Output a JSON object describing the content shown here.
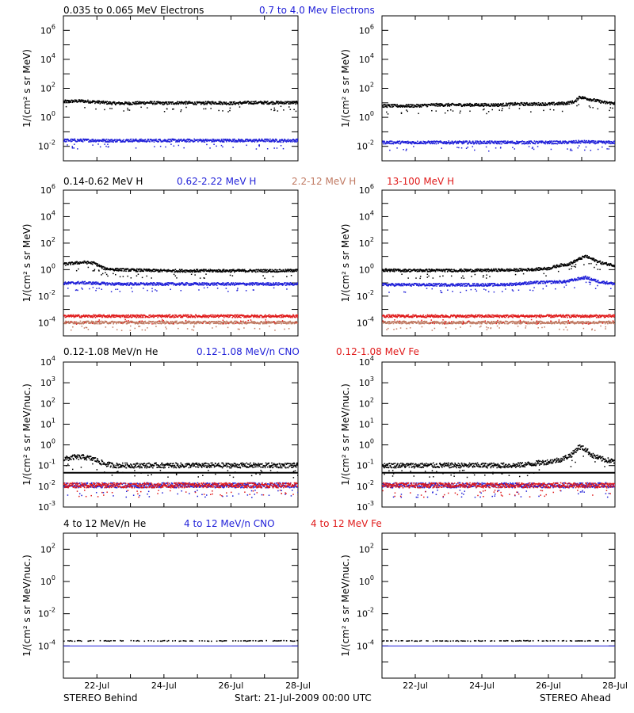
{
  "colors": {
    "black": "#000000",
    "blue": "#1f1fd8",
    "tan": "#c07a63",
    "red": "#e01a1a"
  },
  "rows": [
    {
      "id": "electrons",
      "header": [
        {
          "text": "0.035 to 0.065 MeV Electrons",
          "color": "black"
        },
        {
          "text": "0.7 to 4.0 Mev Electrons",
          "color": "blue"
        }
      ],
      "ylabel": "1/(cm² s sr MeV)",
      "yticks": [
        {
          "base": "10",
          "exp": "6"
        },
        {
          "base": "10",
          "exp": "4"
        },
        {
          "base": "10",
          "exp": "2"
        },
        {
          "base": "10",
          "exp": "0"
        },
        {
          "base": "10",
          "exp": "-2"
        }
      ]
    },
    {
      "id": "protons",
      "header": [
        {
          "text": "0.14-0.62 MeV H",
          "color": "black"
        },
        {
          "text": "0.62-2.22 MeV H",
          "color": "blue"
        },
        {
          "text": "2.2-12 MeV H",
          "color": "tan"
        },
        {
          "text": "13-100 MeV H",
          "color": "red"
        }
      ],
      "ylabel": "1/(cm² s sr MeV)",
      "yticks": [
        {
          "base": "10",
          "exp": "6"
        },
        {
          "base": "10",
          "exp": "4"
        },
        {
          "base": "10",
          "exp": "2"
        },
        {
          "base": "10",
          "exp": "0"
        },
        {
          "base": "10",
          "exp": "-2"
        },
        {
          "base": "10",
          "exp": "-4"
        }
      ]
    },
    {
      "id": "heavy-low",
      "header": [
        {
          "text": "0.12-1.08 MeV/n He",
          "color": "black"
        },
        {
          "text": "0.12-1.08 MeV/n CNO",
          "color": "blue"
        },
        {
          "text": "0.12-1.08 MeV Fe",
          "color": "red"
        }
      ],
      "ylabel": "1/(cm² s sr MeV/nuc.)",
      "yticks": [
        {
          "base": "10",
          "exp": "4"
        },
        {
          "base": "10",
          "exp": "3"
        },
        {
          "base": "10",
          "exp": "2"
        },
        {
          "base": "10",
          "exp": "1"
        },
        {
          "base": "10",
          "exp": "0"
        },
        {
          "base": "10",
          "exp": "-1"
        },
        {
          "base": "10",
          "exp": "-2"
        },
        {
          "base": "10",
          "exp": "-3"
        }
      ]
    },
    {
      "id": "heavy-high",
      "header": [
        {
          "text": "4 to 12 MeV/n He",
          "color": "black"
        },
        {
          "text": "4 to 12 MeV/n CNO",
          "color": "blue"
        },
        {
          "text": "4 to 12 MeV Fe",
          "color": "red"
        }
      ],
      "ylabel": "1/(cm² s sr MeV/nuc.)",
      "yticks": [
        {
          "base": "10",
          "exp": "2"
        },
        {
          "base": "10",
          "exp": "0"
        },
        {
          "base": "10",
          "exp": "-2"
        },
        {
          "base": "10",
          "exp": "-4"
        }
      ]
    }
  ],
  "footer": {
    "left": "STEREO Behind",
    "center": "Start: 21-Jul-2009 00:00 UTC",
    "right": "STEREO Ahead"
  },
  "chart_data": [
    {
      "type": "scatter",
      "panel": "behind-electrons",
      "scale": "log",
      "ylim": [
        0.001,
        10000000
      ],
      "xlim": [
        0,
        7
      ],
      "xticks": [
        "22-Jul",
        "24-Jul",
        "26-Jul",
        "28-Jul"
      ],
      "xtick_values": [
        1,
        3,
        5,
        7
      ],
      "series": [
        {
          "name": "0.035 to 0.065 MeV Electrons",
          "color": "black",
          "x": [
            0,
            0.5,
            1,
            1.5,
            2,
            2.5,
            3,
            3.5,
            4,
            4.5,
            5,
            5.5,
            6,
            6.5,
            7
          ],
          "y": [
            12,
            13,
            11,
            9,
            9,
            10,
            9,
            10,
            9,
            10,
            9,
            10,
            10,
            10,
            10
          ]
        },
        {
          "name": "0.7 to 4.0 Mev Electrons",
          "color": "blue",
          "x": [
            0,
            0.5,
            1,
            1.5,
            2,
            2.5,
            3,
            3.5,
            4,
            4.5,
            5,
            5.5,
            6,
            6.5,
            7
          ],
          "y": [
            0.025,
            0.025,
            0.025,
            0.024,
            0.025,
            0.024,
            0.025,
            0.024,
            0.025,
            0.024,
            0.025,
            0.024,
            0.025,
            0.024,
            0.025
          ]
        }
      ]
    },
    {
      "type": "scatter",
      "panel": "ahead-electrons",
      "scale": "log",
      "ylim": [
        0.001,
        10000000
      ],
      "xlim": [
        0,
        7
      ],
      "xticks": [
        "22-Jul",
        "24-Jul",
        "26-Jul",
        "28-Jul"
      ],
      "xtick_values": [
        1,
        3,
        5,
        7
      ],
      "series": [
        {
          "name": "0.035 to 0.065 MeV Electrons",
          "color": "black",
          "x": [
            0,
            0.5,
            1,
            1.5,
            2,
            2.5,
            3,
            3.5,
            4,
            4.5,
            5,
            5.5,
            5.8,
            5.9,
            6.1,
            6.4,
            6.7,
            7
          ],
          "y": [
            6,
            6,
            6,
            7,
            7,
            7,
            7,
            7,
            8,
            8,
            8,
            9,
            12,
            25,
            20,
            14,
            10,
            9
          ]
        },
        {
          "name": "0.7 to 4.0 Mev Electrons",
          "color": "blue",
          "x": [
            0,
            0.5,
            1,
            1.5,
            2,
            2.5,
            3,
            3.5,
            4,
            4.5,
            5,
            5.5,
            6,
            6.5,
            7
          ],
          "y": [
            0.018,
            0.018,
            0.018,
            0.018,
            0.018,
            0.018,
            0.018,
            0.018,
            0.018,
            0.018,
            0.018,
            0.018,
            0.02,
            0.018,
            0.018
          ]
        }
      ]
    },
    {
      "type": "scatter",
      "panel": "behind-protons",
      "scale": "log",
      "ylim": [
        1e-05,
        1000000
      ],
      "xlim": [
        0,
        7
      ],
      "xticks": [
        "22-Jul",
        "24-Jul",
        "26-Jul",
        "28-Jul"
      ],
      "xtick_values": [
        1,
        3,
        5,
        7
      ],
      "series": [
        {
          "name": "0.14-0.62 MeV H",
          "color": "black",
          "x": [
            0,
            0.3,
            0.6,
            0.9,
            1.2,
            1.5,
            2,
            2.5,
            3,
            3.5,
            4,
            4.5,
            5,
            5.5,
            6,
            6.5,
            7
          ],
          "y": [
            2.5,
            3,
            3.5,
            3,
            1.2,
            1,
            0.9,
            0.85,
            0.8,
            0.8,
            0.8,
            0.8,
            0.8,
            0.8,
            0.8,
            0.8,
            0.85
          ]
        },
        {
          "name": "0.62-2.22 MeV H",
          "color": "blue",
          "x": [
            0,
            0.5,
            1,
            1.5,
            2,
            2.5,
            3,
            3.5,
            4,
            4.5,
            5,
            5.5,
            6,
            6.5,
            7
          ],
          "y": [
            0.09,
            0.1,
            0.09,
            0.08,
            0.08,
            0.08,
            0.08,
            0.08,
            0.08,
            0.08,
            0.08,
            0.08,
            0.08,
            0.08,
            0.08
          ]
        },
        {
          "name": "2.2-12 MeV H",
          "color": "tan",
          "x": [
            0,
            1,
            2,
            3,
            4,
            5,
            6,
            7
          ],
          "y": [
            0.0001,
            0.0001,
            0.0001,
            0.0001,
            0.0001,
            0.0001,
            0.0001,
            0.0001
          ]
        },
        {
          "name": "13-100 MeV H",
          "color": "red",
          "x": [
            0,
            1,
            2,
            3,
            4,
            5,
            6,
            7
          ],
          "y": [
            0.0003,
            0.0003,
            0.0003,
            0.0003,
            0.0003,
            0.0003,
            0.0003,
            0.0003
          ]
        }
      ]
    },
    {
      "type": "scatter",
      "panel": "ahead-protons",
      "scale": "log",
      "ylim": [
        1e-05,
        1000000
      ],
      "xlim": [
        0,
        7
      ],
      "xticks": [
        "22-Jul",
        "24-Jul",
        "26-Jul",
        "28-Jul"
      ],
      "xtick_values": [
        1,
        3,
        5,
        7
      ],
      "series": [
        {
          "name": "0.14-0.62 MeV H",
          "color": "black",
          "x": [
            0,
            0.5,
            1,
            1.5,
            2,
            2.5,
            3,
            3.5,
            4,
            4.5,
            5,
            5.3,
            5.6,
            5.9,
            6.1,
            6.3,
            6.6,
            7
          ],
          "y": [
            0.9,
            0.85,
            0.85,
            0.85,
            0.85,
            0.85,
            0.85,
            0.9,
            0.9,
            1,
            1.2,
            2,
            2.5,
            6,
            10,
            6,
            3,
            2
          ]
        },
        {
          "name": "0.62-2.22 MeV H",
          "color": "blue",
          "x": [
            0,
            0.5,
            1,
            1.5,
            2,
            2.5,
            3,
            3.5,
            4,
            4.5,
            5,
            5.5,
            5.9,
            6.1,
            6.5,
            7
          ],
          "y": [
            0.07,
            0.07,
            0.07,
            0.07,
            0.07,
            0.07,
            0.07,
            0.07,
            0.08,
            0.1,
            0.11,
            0.12,
            0.2,
            0.25,
            0.12,
            0.08
          ]
        },
        {
          "name": "2.2-12 MeV H",
          "color": "tan",
          "x": [
            0,
            1,
            2,
            3,
            4,
            5,
            6,
            7
          ],
          "y": [
            0.0001,
            0.0001,
            0.0001,
            0.0001,
            0.0001,
            0.0001,
            0.0001,
            0.0001
          ]
        },
        {
          "name": "13-100 MeV H",
          "color": "red",
          "x": [
            0,
            1,
            2,
            3,
            4,
            5,
            6,
            7
          ],
          "y": [
            0.0003,
            0.0003,
            0.0003,
            0.0003,
            0.0003,
            0.0003,
            0.0003,
            0.0003
          ]
        }
      ]
    },
    {
      "type": "scatter",
      "panel": "behind-heavy-low",
      "scale": "log",
      "ylim": [
        0.001,
        10000
      ],
      "xlim": [
        0,
        7
      ],
      "xticks": [
        "22-Jul",
        "24-Jul",
        "26-Jul",
        "28-Jul"
      ],
      "xtick_values": [
        1,
        3,
        5,
        7
      ],
      "series": [
        {
          "name": "0.12-1.08 MeV/n He",
          "color": "black",
          "x": [
            0,
            0.3,
            0.6,
            0.9,
            1.2,
            1.5,
            2,
            2.5,
            3,
            3.5,
            4,
            4.5,
            5,
            5.5,
            6,
            6.5,
            7
          ],
          "y": [
            0.2,
            0.25,
            0.25,
            0.2,
            0.12,
            0.1,
            0.1,
            0.1,
            0.1,
            0.1,
            0.1,
            0.1,
            0.1,
            0.1,
            0.1,
            0.1,
            0.1
          ]
        },
        {
          "name": "0.12-1.08 MeV/n CNO",
          "color": "blue",
          "x": [
            0,
            1,
            2,
            3,
            4,
            5,
            6,
            7
          ],
          "y": [
            0.011,
            0.011,
            0.011,
            0.011,
            0.011,
            0.011,
            0.011,
            0.011
          ]
        },
        {
          "name": "0.12-1.08 MeV Fe",
          "color": "red",
          "x": [
            0,
            1,
            2,
            3,
            4,
            5,
            6,
            7
          ],
          "y": [
            0.011,
            0.011,
            0.011,
            0.011,
            0.011,
            0.011,
            0.011,
            0.011
          ]
        }
      ]
    },
    {
      "type": "scatter",
      "panel": "ahead-heavy-low",
      "scale": "log",
      "ylim": [
        0.001,
        10000
      ],
      "xlim": [
        0,
        7
      ],
      "xticks": [
        "22-Jul",
        "24-Jul",
        "26-Jul",
        "28-Jul"
      ],
      "xtick_values": [
        1,
        3,
        5,
        7
      ],
      "series": [
        {
          "name": "0.12-1.08 MeV/n He",
          "color": "black",
          "x": [
            0,
            0.5,
            1,
            1.5,
            2,
            2.5,
            3,
            3.5,
            4,
            4.5,
            5,
            5.4,
            5.7,
            5.9,
            6.1,
            6.3,
            6.6,
            7
          ],
          "y": [
            0.1,
            0.1,
            0.1,
            0.1,
            0.1,
            0.1,
            0.1,
            0.1,
            0.1,
            0.12,
            0.15,
            0.2,
            0.35,
            0.8,
            0.6,
            0.3,
            0.2,
            0.15
          ]
        },
        {
          "name": "0.12-1.08 MeV/n CNO",
          "color": "blue",
          "x": [
            0,
            1,
            2,
            3,
            4,
            5,
            6,
            7
          ],
          "y": [
            0.011,
            0.011,
            0.011,
            0.011,
            0.011,
            0.011,
            0.011,
            0.011
          ]
        },
        {
          "name": "0.12-1.08 MeV Fe",
          "color": "red",
          "x": [
            0,
            1,
            2,
            3,
            4,
            5,
            6,
            7
          ],
          "y": [
            0.011,
            0.011,
            0.011,
            0.011,
            0.011,
            0.011,
            0.011,
            0.011
          ]
        }
      ]
    },
    {
      "type": "scatter",
      "panel": "behind-heavy-high",
      "scale": "log",
      "ylim": [
        1e-06,
        1000
      ],
      "xlim": [
        0,
        7
      ],
      "xticks": [
        "22-Jul",
        "24-Jul",
        "26-Jul",
        "28-Jul"
      ],
      "xtick_values": [
        1,
        3,
        5,
        7
      ],
      "series": [
        {
          "name": "4 to 12 MeV/n He",
          "color": "black",
          "x": [
            0.2,
            0.5,
            1,
            1.5,
            2,
            2.3,
            2.8,
            3.4,
            4,
            4.5,
            5,
            5.5,
            6,
            6.5
          ],
          "y": [
            0.0002,
            0.0002,
            0.0002,
            0.0002,
            0.0002,
            0.0002,
            0.0002,
            0.0002,
            0.0002,
            0.0002,
            0.0002,
            0.0002,
            0.0002,
            0.0002
          ]
        },
        {
          "name": "4 to 12 MeV/n CNO",
          "color": "blue",
          "x": [
            0,
            7
          ],
          "y": [
            0.0001,
            0.0001
          ]
        }
      ]
    },
    {
      "type": "scatter",
      "panel": "ahead-heavy-high",
      "scale": "log",
      "ylim": [
        1e-06,
        1000
      ],
      "xlim": [
        0,
        7
      ],
      "xticks": [
        "22-Jul",
        "24-Jul",
        "26-Jul",
        "28-Jul"
      ],
      "xtick_values": [
        1,
        3,
        5,
        7
      ],
      "series": [
        {
          "name": "4 to 12 MeV/n He",
          "color": "black",
          "x": [
            0.3,
            0.8,
            1.3,
            1.8,
            2.3,
            2.8,
            3.3,
            3.8,
            4.3,
            4.8,
            5.3,
            5.8,
            6.3,
            6.8
          ],
          "y": [
            0.0002,
            0.0002,
            0.0002,
            0.0002,
            0.0002,
            0.0002,
            0.0002,
            0.0002,
            0.0002,
            0.0002,
            0.0002,
            0.0002,
            0.0002,
            0.0002
          ]
        },
        {
          "name": "4 to 12 MeV/n CNO",
          "color": "blue",
          "x": [
            0,
            7
          ],
          "y": [
            0.0001,
            0.0001
          ]
        }
      ]
    }
  ]
}
